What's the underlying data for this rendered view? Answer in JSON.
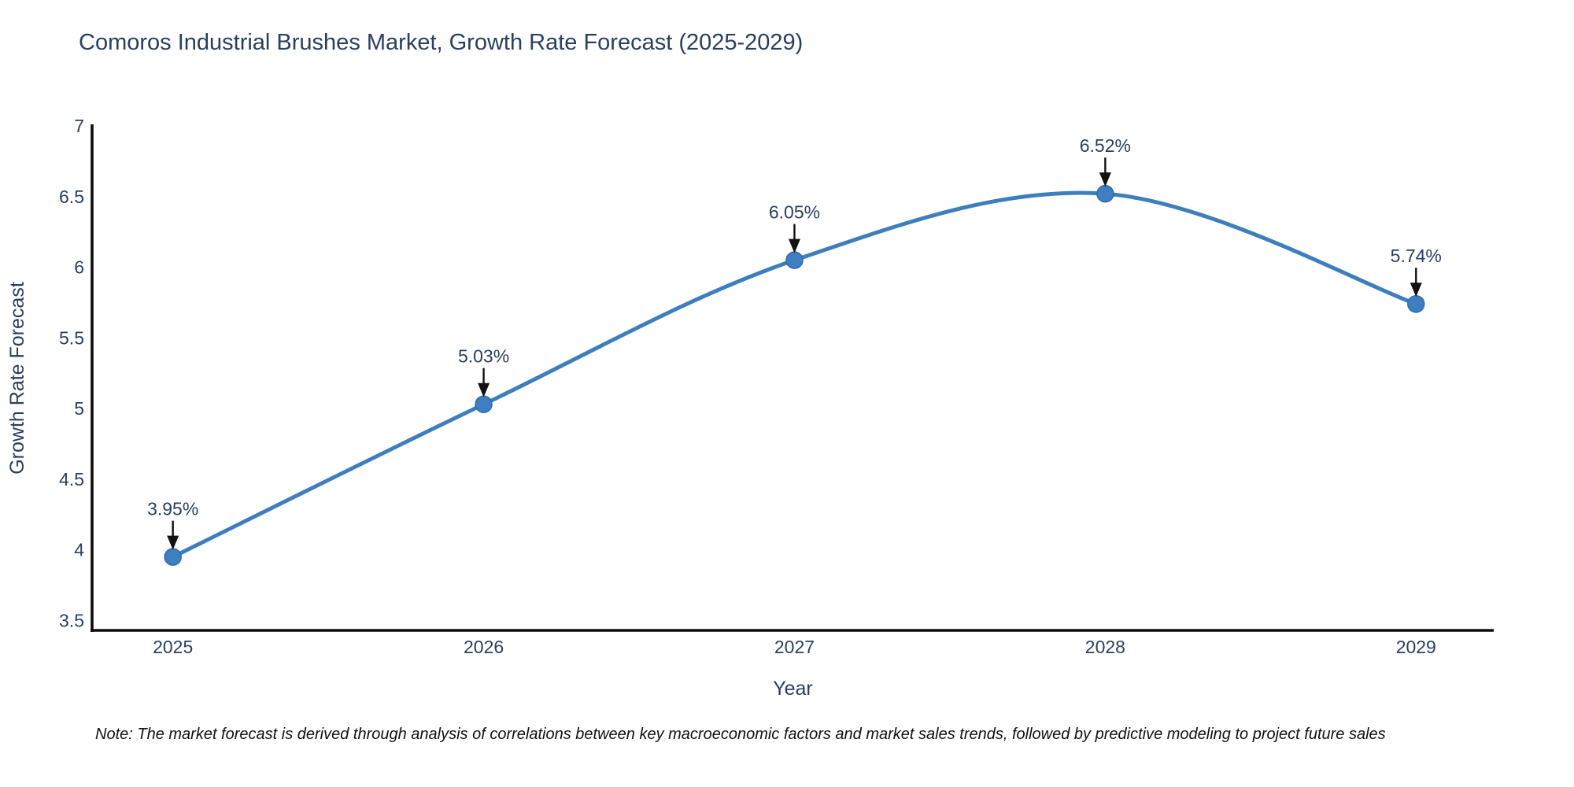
{
  "title": "Comoros Industrial Brushes Market, Growth Rate Forecast (2025-2029)",
  "footnote": "Note: The market forecast is derived through analysis of correlations between key macroeconomic factors and market sales trends, followed by predictive modeling to project future sales",
  "colors": {
    "line": "#3d7ebd",
    "marker_fill": "#3f7fc1",
    "marker_stroke": "#2e6ca8",
    "axis_line": "#0d0d0d",
    "text": "#2a3f5f",
    "annotation_text": "#2a3f5f",
    "arrow": "#111111",
    "note_text": "#111111",
    "background": "#ffffff"
  },
  "chart_data": {
    "type": "line",
    "title": "Comoros Industrial Brushes Market, Growth Rate Forecast (2025-2029)",
    "x": [
      2025,
      2026,
      2027,
      2028,
      2029
    ],
    "values": [
      3.95,
      5.03,
      6.05,
      6.52,
      5.74
    ],
    "point_labels": [
      "3.95%",
      "5.03%",
      "6.05%",
      "6.52%",
      "5.74%"
    ],
    "xlabel": "Year",
    "ylabel": "Growth Rate Forecast",
    "xticks": [
      2025,
      2026,
      2027,
      2028,
      2029
    ],
    "yticks": [
      3.5,
      4,
      4.5,
      5,
      5.5,
      6,
      6.5,
      7
    ],
    "xlim": [
      2024.74,
      2029.25
    ],
    "ylim": [
      3.43,
      7.0
    ],
    "line_shape": "spline",
    "grid": false,
    "legend_position": "none",
    "annotations_arrow_style": "down-arrow-to-point"
  }
}
